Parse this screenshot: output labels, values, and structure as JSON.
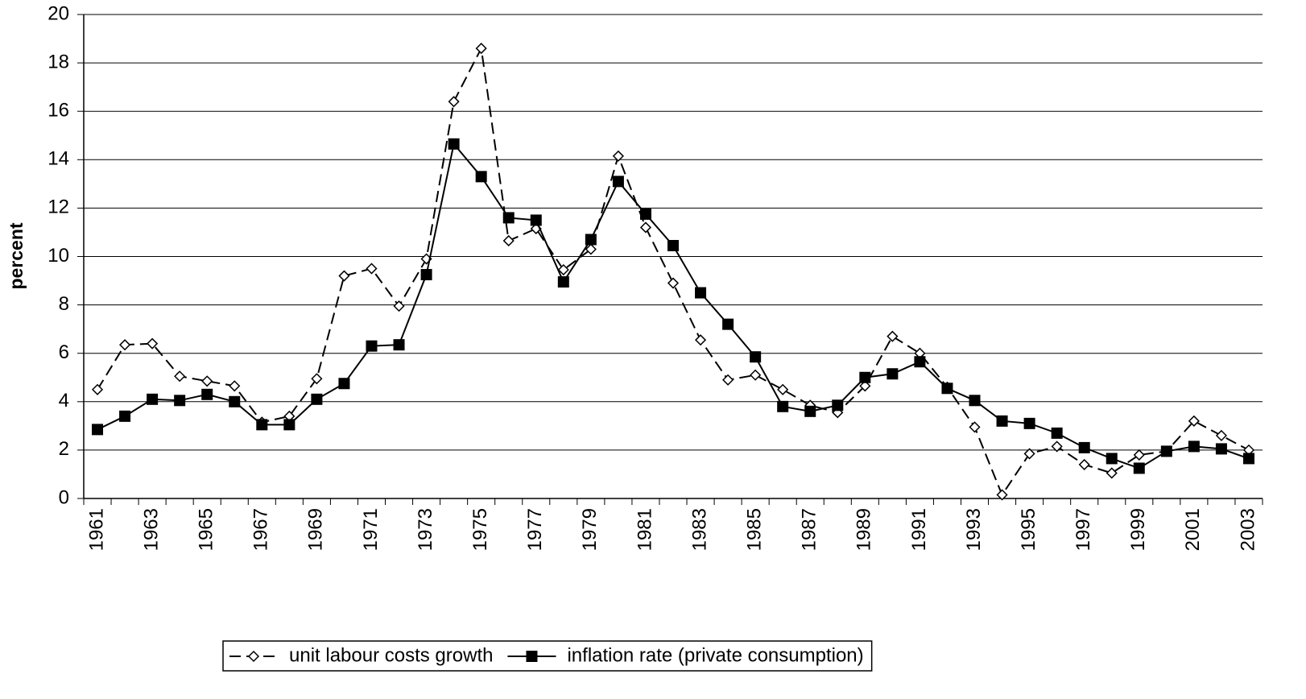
{
  "chart_data": {
    "type": "line",
    "y_label": "percent",
    "categories": [
      "1961",
      null,
      "1963",
      null,
      "1965",
      null,
      "1967",
      null,
      "1969",
      null,
      "1971",
      null,
      "1973",
      null,
      "1975",
      null,
      "1977",
      null,
      "1979",
      null,
      "1981",
      null,
      "1983",
      null,
      "1985",
      null,
      "1987",
      null,
      "1989",
      null,
      "1991",
      null,
      "1993",
      null,
      "1995",
      null,
      "1997",
      null,
      "1999",
      null,
      "2001",
      null,
      "2003"
    ],
    "series": [
      {
        "name": "unit labour costs growth",
        "color": "#000000",
        "dash": true,
        "marker": "diamond",
        "values": [
          4.5,
          6.35,
          6.4,
          5.05,
          4.85,
          4.65,
          3.15,
          3.4,
          4.95,
          9.2,
          9.5,
          7.95,
          9.9,
          16.4,
          18.6,
          10.65,
          11.15,
          9.45,
          10.3,
          14.15,
          11.2,
          8.9,
          6.55,
          4.9,
          5.1,
          4.5,
          3.85,
          3.55,
          4.65,
          6.7,
          6.0,
          4.6,
          2.95,
          0.15,
          1.85,
          2.15,
          1.4,
          1.05,
          1.8,
          1.95,
          3.2,
          2.6,
          2.0
        ]
      },
      {
        "name": "inflation rate (private consumption)",
        "color": "#000000",
        "dash": false,
        "marker": "square",
        "values": [
          2.85,
          3.4,
          4.1,
          4.05,
          4.3,
          4.0,
          3.05,
          3.05,
          4.1,
          4.75,
          6.3,
          6.35,
          9.25,
          14.65,
          13.3,
          11.6,
          11.5,
          8.95,
          10.7,
          13.1,
          11.75,
          10.45,
          8.5,
          7.2,
          5.85,
          3.8,
          3.6,
          3.85,
          5.0,
          5.15,
          5.65,
          4.55,
          4.05,
          3.2,
          3.1,
          2.7,
          2.1,
          1.65,
          1.25,
          1.95,
          2.15,
          2.05,
          1.65
        ]
      }
    ],
    "ylim": [
      0,
      20
    ],
    "yticks": [
      0,
      2,
      4,
      6,
      8,
      10,
      12,
      14,
      16,
      18,
      20
    ],
    "grid": true,
    "legend": "bottom"
  }
}
